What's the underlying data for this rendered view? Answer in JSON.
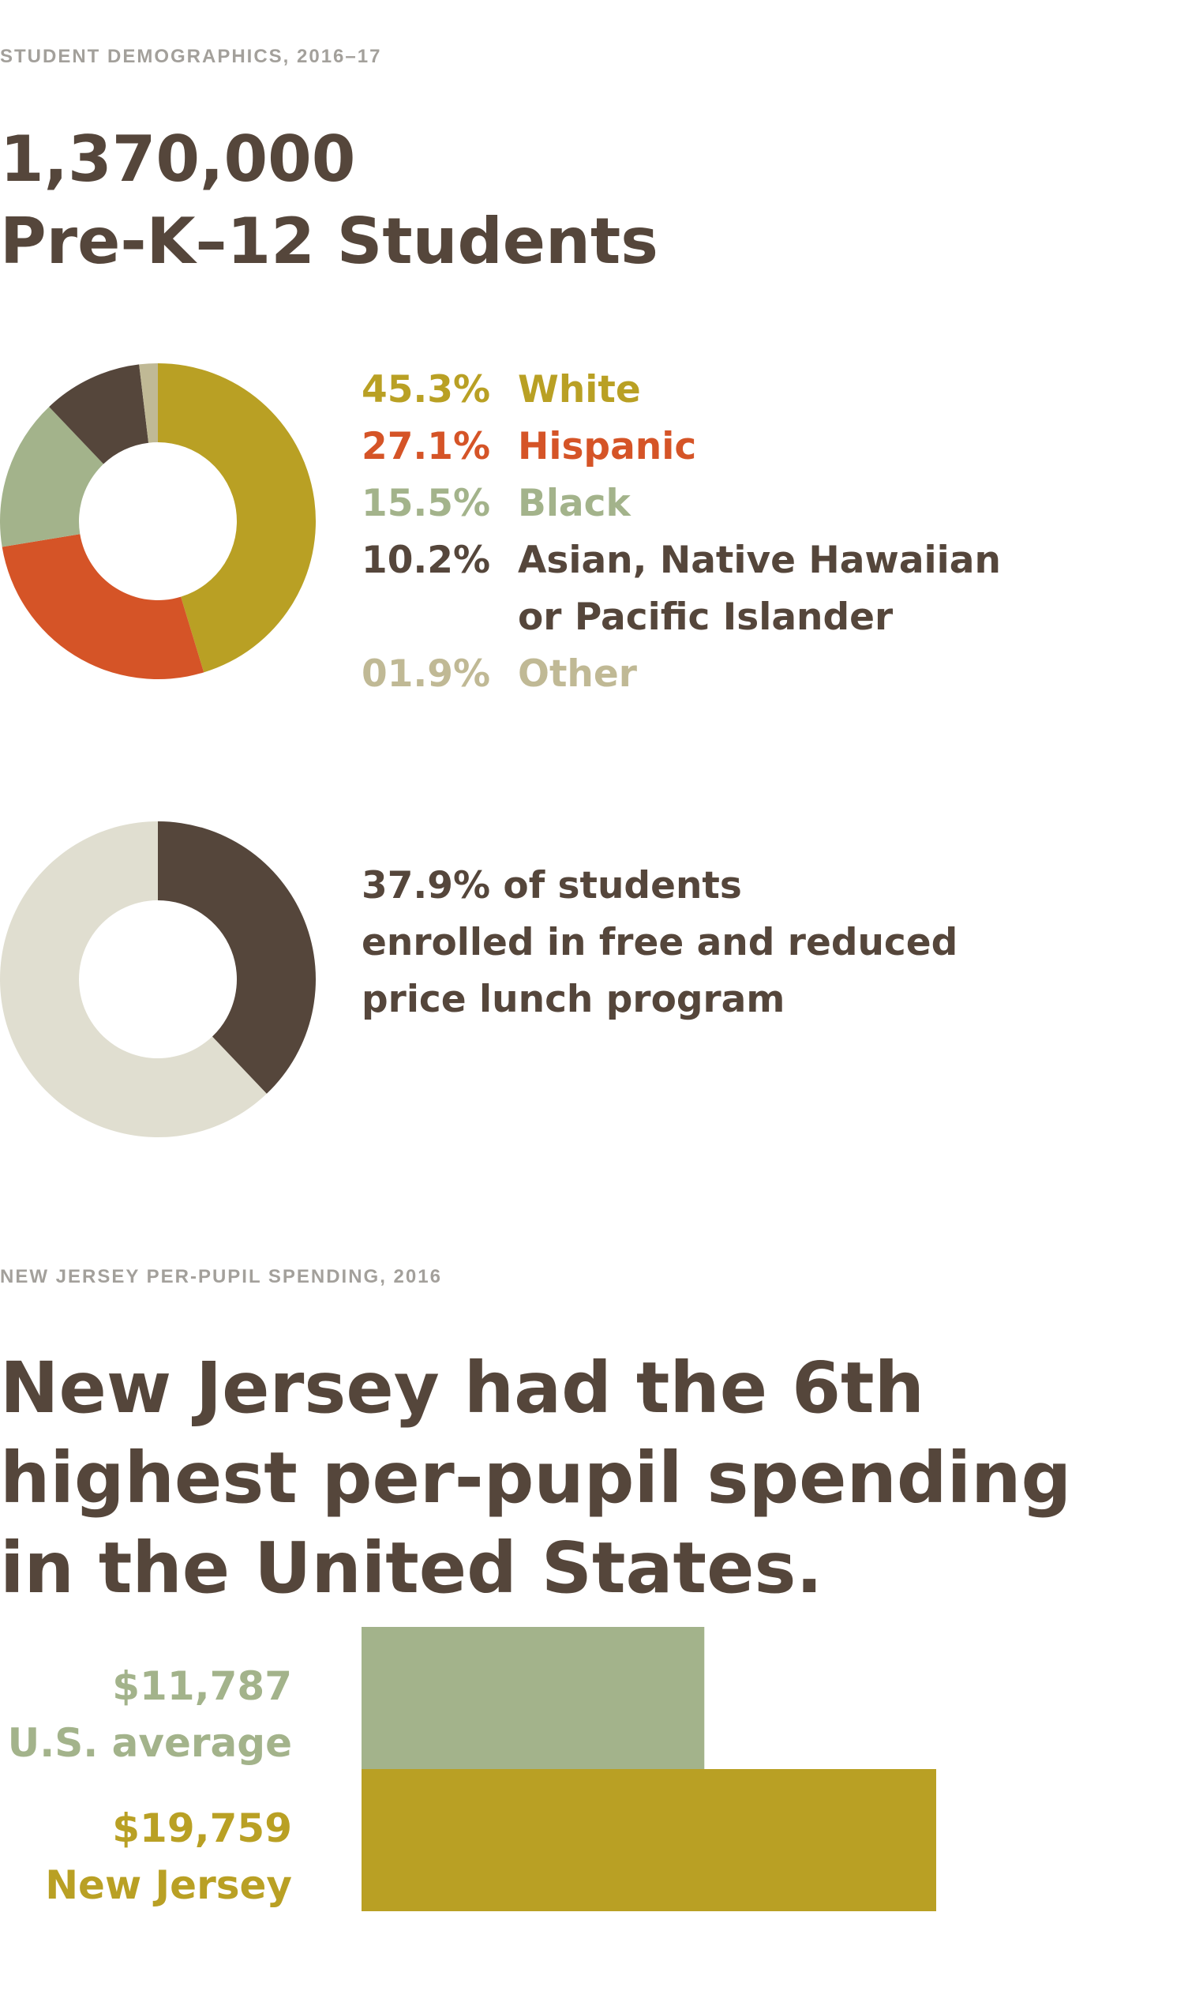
{
  "section1": {
    "eyebrow": "STUDENT DEMOGRAPHICS, 2016–17",
    "headline_line1": "1,370,000",
    "headline_line2": "Pre-K–12 Students"
  },
  "colors": {
    "text": "#55463b",
    "white_group": "#b9a024",
    "hispanic": "#d55427",
    "black": "#a3b38b",
    "asian": "#55463b",
    "other": "#c0b995",
    "lunch_rest": "#e0ded0",
    "eyebrow": "#a3a09b"
  },
  "section2": {
    "text": "37.9% of students\nenrolled in free and reduced\nprice lunch program"
  },
  "section3": {
    "eyebrow": "NEW JERSEY PER-PUPIL SPENDING, 2016",
    "headline_line1": "New Jersey had the 6th",
    "headline_line2": "highest per-pupil spending",
    "headline_line3": "in the United States."
  },
  "chart_data": [
    {
      "type": "pie",
      "title": "",
      "slices": [
        {
          "label": "White",
          "display": "45.3%",
          "value": 45.3,
          "color": "#b9a024"
        },
        {
          "label": "Hispanic",
          "display": "27.1%",
          "value": 27.1,
          "color": "#d55427"
        },
        {
          "label": "Black",
          "display": "15.5%",
          "value": 15.5,
          "color": "#a3b38b"
        },
        {
          "label": "Asian, Native Hawaiian\nor Pacific Islander",
          "display": "10.2%",
          "value": 10.2,
          "color": "#55463b"
        },
        {
          "label": "Other",
          "display": "01.9%",
          "value": 1.9,
          "color": "#c0b995"
        }
      ]
    },
    {
      "type": "pie",
      "title": "",
      "slices": [
        {
          "label": "",
          "value": 37.9,
          "color": "#55463b"
        },
        {
          "label": "",
          "value": 62.1,
          "color": "#e0ded0"
        }
      ]
    },
    {
      "type": "bar",
      "orientation": "horizontal",
      "categories": [
        "U.S. average",
        "New Jersey"
      ],
      "values": [
        11787,
        19759
      ],
      "value_labels": [
        "$11,787",
        "$19,759"
      ],
      "colors": [
        "#a3b38b",
        "#b9a024"
      ],
      "xlabel": "",
      "ylabel": "",
      "xlim": [
        0,
        19759
      ]
    }
  ]
}
